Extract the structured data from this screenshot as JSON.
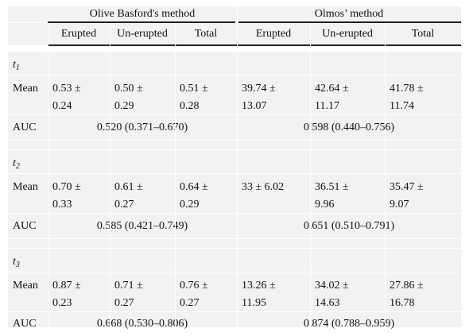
{
  "header": {
    "group1": "Olive Basford's method",
    "group2": "Olmos’ method",
    "cols": [
      "Erupted",
      "Un-erupted",
      "Total",
      "Erupted",
      "Un-erupted",
      "Total"
    ]
  },
  "sections": [
    {
      "t_label": "t",
      "t_sub": "1",
      "mean_label": "Mean",
      "mean": [
        "0.53 ±",
        "0.24",
        "0.50 ±",
        "0.29",
        "0.51 ±",
        "0.28",
        "39.74 ±",
        "13.07",
        "42.64 ±",
        "11.17",
        "41.78 ±",
        "11.74"
      ],
      "auc_label": "AUC",
      "auc1": "0.520 (0.371–0.670)",
      "auc2": "0.598 (0.440–0.756)"
    },
    {
      "t_label": "t",
      "t_sub": "2",
      "mean_label": "Mean",
      "mean": [
        "0.70 ±",
        "0.33",
        "0.61 ±",
        "0.27",
        "0.64 ±",
        "0.29",
        "33 ± 6.02",
        "",
        "36.51 ±",
        "9.96",
        "35.47 ±",
        "9.07"
      ],
      "auc_label": "AUC",
      "auc1": "0.585 (0.421–0.749)",
      "auc2": "0.651 (0.510–0.791)"
    },
    {
      "t_label": "t",
      "t_sub": "3",
      "mean_label": "Mean",
      "mean": [
        "0.87 ±",
        "0.23",
        "0.71 ±",
        "0.27",
        "0.76 ±",
        "0.27",
        "13.26 ±",
        "11.95",
        "34.02 ±",
        "14.63",
        "27.86 ±",
        "16.78"
      ],
      "auc_label": "AUC",
      "auc1": "0.668 (0.530–0.806)",
      "auc2": "0.874 (0.788–0.959)"
    }
  ]
}
